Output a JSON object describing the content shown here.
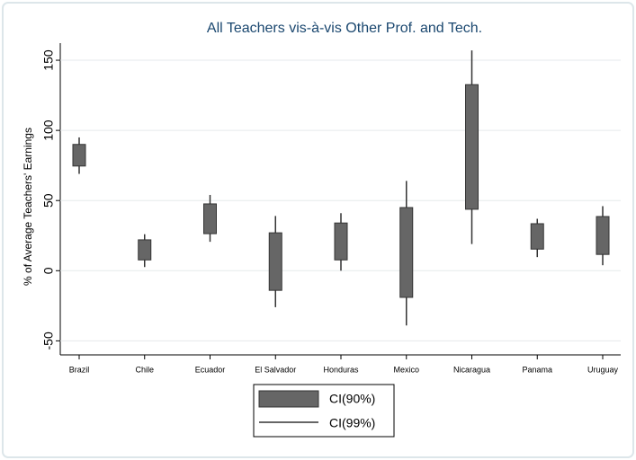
{
  "chart_data": {
    "type": "rangebar",
    "title": "All Teachers vis-à-vis Other Prof. and Tech.",
    "y_label": "% of Average Teachers' Earnings",
    "categories": [
      "Brazil",
      "Chile",
      "Ecuador",
      "El Salvador",
      "Honduras",
      "Mexico",
      "Nicaragua",
      "Panama",
      "Uruguay"
    ],
    "series": [
      {
        "name": "CI(90%)",
        "color": "#666666",
        "low": [
          74.6,
          7.7,
          26.4,
          -14,
          7.7,
          -19,
          43.8,
          15.4,
          11.6
        ],
        "high": [
          90,
          22,
          47.6,
          27,
          34,
          45,
          132.6,
          33.5,
          38.6
        ]
      },
      {
        "name": "CI(99%)",
        "color": "#333333",
        "low": [
          69,
          2.6,
          20.6,
          -26,
          0,
          -39,
          19,
          9.7,
          3.9
        ],
        "high": [
          95,
          26,
          54,
          39,
          41,
          64,
          157,
          37,
          46
        ]
      }
    ],
    "ylim": [
      -60,
      175
    ],
    "yticks": [
      -50,
      0,
      50,
      100,
      150
    ],
    "grid": true,
    "legend": "bottom"
  }
}
